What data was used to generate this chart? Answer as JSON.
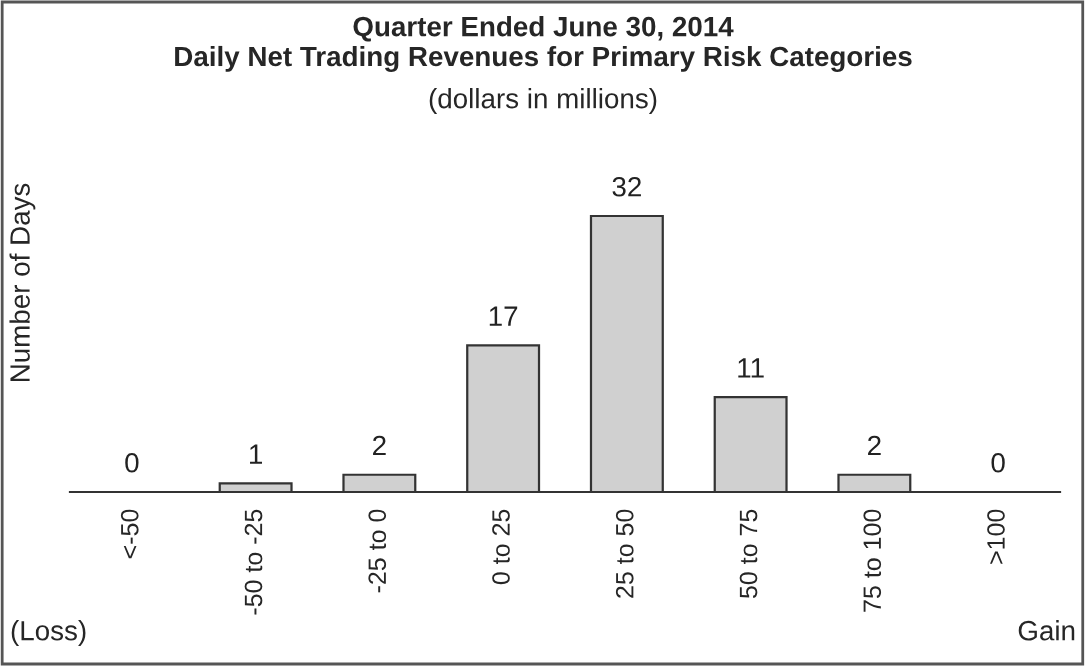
{
  "chart_data": {
    "type": "bar",
    "title": "Quarter Ended June 30, 2014\nDaily Net Trading Revenues for Primary Risk Categories",
    "subtitle": "(dollars in millions)",
    "ylabel": "Number of Days",
    "categories": [
      "<-50",
      "-50 to -25",
      "-25 to 0",
      "0 to 25",
      "25 to 50",
      "50 to 75",
      "75 to 100",
      ">100"
    ],
    "values": [
      0,
      1,
      2,
      17,
      32,
      11,
      2,
      0
    ],
    "color": "#d0d0d0",
    "data_labels": true,
    "grid": false,
    "legend": false,
    "annotations": [
      "(Loss)",
      "Gain"
    ]
  }
}
